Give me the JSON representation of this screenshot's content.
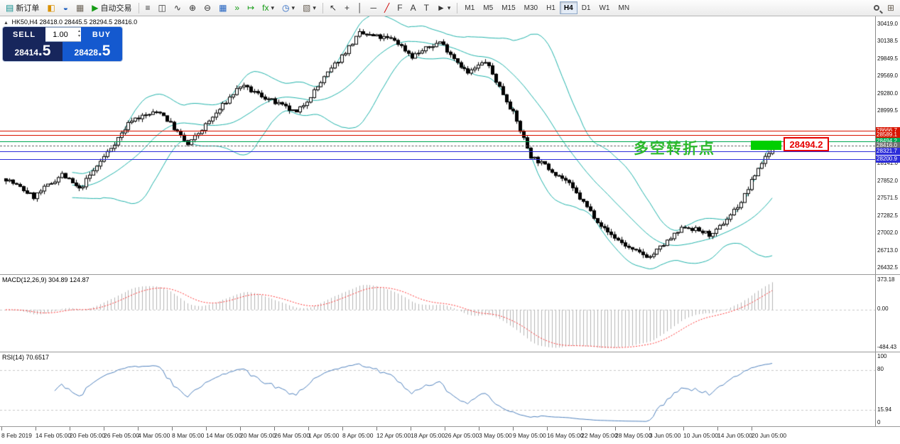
{
  "toolbar": {
    "new_order_label": "新订单",
    "auto_trading_label": "自动交易",
    "timeframes": [
      "M1",
      "M5",
      "M15",
      "M30",
      "H1",
      "H4",
      "D1",
      "W1",
      "MN"
    ],
    "active_timeframe": "H4"
  },
  "icons": {
    "new_order": "▤",
    "market_watch": "◧",
    "navigator": "◒",
    "terminal": "▦",
    "play": "▶",
    "chart_bars": "≡",
    "chart_candles": "◫",
    "chart_line": "∿",
    "zoom_in": "⊕",
    "zoom_out": "⊖",
    "tile_windows": "▦",
    "auto_scroll": "»",
    "chart_shift": "↦",
    "indicators": "fx",
    "periods": "◷",
    "templates": "▧",
    "cursor": "↖",
    "crosshair": "+",
    "vline": "│",
    "hline": "─",
    "trendline": "╱",
    "fibonacci": "F",
    "text": "A",
    "label": "T",
    "shapes": "►",
    "dropdown": "▾",
    "new_window": "⊞",
    "collapse": "▲",
    "spinner_up": "▴",
    "spinner_down": "▾"
  },
  "symbol_header": {
    "symbol": "HK50,H4",
    "ohlc": "28418.0 28445.5 28294.5 28416.0"
  },
  "trade_panel": {
    "sell_label": "SELL",
    "buy_label": "BUY",
    "volume": "1.00",
    "sell_price_main": "28414",
    "sell_price_big": ".5",
    "buy_price_main": "28428",
    "buy_price_big": ".5"
  },
  "annotation": {
    "text": "多空转折点",
    "price_label": "28494.2",
    "text_color": "#2db92d",
    "rect_color": "#00cf00",
    "label_color": "#e60000"
  },
  "price_axis": {
    "ticks": [
      "30419.0",
      "30138.5",
      "29849.5",
      "29569.0",
      "29280.0",
      "28999.5",
      "28141.0",
      "27852.0",
      "27571.5",
      "27282.5",
      "27002.0",
      "26713.0",
      "26432.5"
    ],
    "levels": [
      {
        "price": 28666.7,
        "label": "28666.7",
        "color": "#d91400",
        "type": "solid"
      },
      {
        "price": 28589.1,
        "label": "28589.1",
        "color": "#d91400",
        "type": "solid"
      },
      {
        "price": 28494.2,
        "label": "28494.2",
        "color": "#00a651",
        "type": "solid"
      },
      {
        "price": 28416.0,
        "label": "28416.0",
        "color": "#6e6e6e",
        "type": "dashed"
      },
      {
        "price": 28321.7,
        "label": "28321.7",
        "color": "#2d2dd9",
        "type": "solid"
      },
      {
        "price": 28200.9,
        "label": "28200.9",
        "color": "#2d2dd9",
        "type": "solid"
      }
    ]
  },
  "chart_data": {
    "type": "candlestick",
    "symbol": "HK50",
    "timeframe": "H4",
    "ohlc_current": {
      "open": 28418.0,
      "high": 28445.5,
      "low": 28294.5,
      "close": 28416.0
    },
    "price_range": [
      26432.5,
      30419.0
    ],
    "candle_count": 220,
    "close_anchors": [
      [
        0,
        27880
      ],
      [
        8,
        27580
      ],
      [
        16,
        27950
      ],
      [
        21,
        27700
      ],
      [
        36,
        28850
      ],
      [
        44,
        28980
      ],
      [
        52,
        28430
      ],
      [
        67,
        29400
      ],
      [
        75,
        29180
      ],
      [
        83,
        28950
      ],
      [
        101,
        30250
      ],
      [
        111,
        30150
      ],
      [
        116,
        29880
      ],
      [
        124,
        30120
      ],
      [
        132,
        29600
      ],
      [
        137,
        29800
      ],
      [
        145,
        28950
      ],
      [
        150,
        28250
      ],
      [
        160,
        27850
      ],
      [
        171,
        27050
      ],
      [
        179,
        26700
      ],
      [
        184,
        26600
      ],
      [
        194,
        27100
      ],
      [
        202,
        26950
      ],
      [
        210,
        27500
      ],
      [
        215,
        28050
      ],
      [
        219,
        28416
      ]
    ],
    "noise": 40,
    "wick": 55,
    "bollinger": {
      "period": 20,
      "deviation": 2,
      "color": "#20b2aa"
    },
    "up_color": "#ffffff",
    "down_color": "#000000",
    "outline_color": "#000000"
  },
  "macd": {
    "label": "MACD(12,26,9) 304.89 124.87",
    "axis_labels": [
      "373.18",
      "0.00",
      "-484.43"
    ],
    "histogram_color": "#b4b4b4",
    "signal_color": "#ff3333"
  },
  "rsi": {
    "label": "RSI(14) 70.6517",
    "axis_labels": [
      "100",
      "80",
      "15.94",
      "0"
    ],
    "levels": [
      80,
      20
    ],
    "line_color": "#4f81bd"
  },
  "time_axis": {
    "labels": [
      "8 Feb 2019",
      "14 Feb 05:00",
      "20 Feb 05:00",
      "26 Feb 05:00",
      "4 Mar 05:00",
      "8 Mar 05:00",
      "14 Mar 05:00",
      "20 Mar 05:00",
      "26 Mar 05:00",
      "1 Apr 05:00",
      "8 Apr 05:00",
      "12 Apr 05:00",
      "18 Apr 05:00",
      "26 Apr 05:00",
      "3 May 05:00",
      "9 May 05:00",
      "16 May 05:00",
      "22 May 05:00",
      "28 May 05:00",
      "3 Jun 05:00",
      "10 Jun 05:00",
      "14 Jun 05:00",
      "20 Jun 05:00"
    ]
  }
}
